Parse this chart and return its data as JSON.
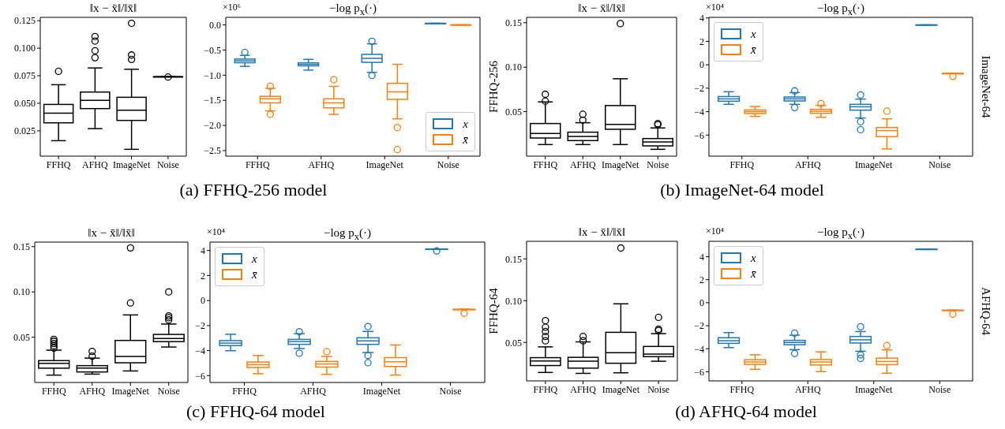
{
  "chart_data": [
    {
      "type": "box",
      "title": "‖x − x̄‖/‖x̄‖",
      "categories": [
        "FFHQ",
        "AFHQ",
        "ImageNet",
        "Noise"
      ],
      "ylim": [
        0.002,
        0.128
      ],
      "yticks": [
        {
          "value": 0.025,
          "label": "0.025"
        },
        {
          "value": 0.05,
          "label": "0.050"
        },
        {
          "value": 0.075,
          "label": "0.075"
        },
        {
          "value": 0.1,
          "label": "0.100"
        },
        {
          "value": 0.125,
          "label": "0.125"
        }
      ],
      "annotations": [
        "(a) FFHQ-256 model"
      ],
      "series": [
        {
          "color": "#000000",
          "boxes": [
            {
              "low": 0.0154,
              "q1": 0.0317,
              "median": 0.0406,
              "q3": 0.0485,
              "high": 0.0665,
              "outliers": [
                0.079
              ]
            },
            {
              "low": 0.0264,
              "q1": 0.0447,
              "median": 0.0523,
              "q3": 0.0598,
              "high": 0.0818,
              "outliers": [
                0.1106,
                0.1065,
                0.0977,
                0.0914
              ]
            },
            {
              "low": 0.0075,
              "q1": 0.0339,
              "median": 0.0432,
              "q3": 0.055,
              "high": 0.0806,
              "outliers": [
                0.1226,
                0.0938,
                0.0898
              ]
            },
            {
              "low": 0.0738,
              "q1": 0.0738,
              "median": 0.0738,
              "q3": 0.0738,
              "high": 0.0738,
              "outliers": [
                0.0738
              ]
            }
          ]
        }
      ]
    },
    {
      "type": "box",
      "title": "−log p$_{x}$(·)",
      "categories": [
        "FFHQ",
        "AFHQ",
        "ImageNet",
        "Noise"
      ],
      "ylim": [
        -2.61,
        0.15
      ],
      "yticks": [
        {
          "value": -2.5,
          "label": "−2.5"
        },
        {
          "value": -2,
          "label": "−2.0"
        },
        {
          "value": -1.5,
          "label": "−1.5"
        },
        {
          "value": -1,
          "label": "−1.0"
        },
        {
          "value": -0.5,
          "label": "−0.5"
        },
        {
          "value": 0,
          "label": "0.0"
        }
      ],
      "annotations": [
        "×10⁶"
      ],
      "legend": "bottom right",
      "series": [
        {
          "name": "x",
          "color": "#1f77b4",
          "boxes": [
            {
              "low": -0.83,
              "q1": -0.758,
              "median": -0.72,
              "q3": -0.684,
              "high": -0.61,
              "outliers": [
                -0.547
              ]
            },
            {
              "low": -0.905,
              "q1": -0.82,
              "median": -0.79,
              "q3": -0.76,
              "high": -0.69
            },
            {
              "low": -0.95,
              "q1": -0.75,
              "median": -0.67,
              "q3": -0.59,
              "high": -0.38,
              "outliers": [
                -0.326,
                -1.005
              ]
            },
            {
              "low": 0.03,
              "q1": 0.03,
              "median": 0.03,
              "q3": 0.03,
              "high": 0.03
            }
          ]
        },
        {
          "name": "x̄",
          "color": "#ff7f0e",
          "boxes": [
            {
              "low": -1.72,
              "q1": -1.56,
              "median": -1.48,
              "q3": -1.43,
              "high": -1.27,
              "outliers": [
                -1.22,
                -1.78
              ]
            },
            {
              "low": -1.79,
              "q1": -1.66,
              "median": -1.56,
              "q3": -1.48,
              "high": -1.23,
              "outliers": [
                -1.09
              ]
            },
            {
              "low": -1.88,
              "q1": -1.49,
              "median": -1.34,
              "q3": -1.17,
              "high": -0.79,
              "outliers": [
                -2.04,
                -2.48
              ]
            },
            {
              "low": 0,
              "q1": 0,
              "median": 0,
              "q3": 0,
              "high": 0
            }
          ]
        }
      ]
    },
    {
      "type": "box",
      "title": "‖x − x̄‖/‖x̄‖",
      "ylabel": "FFHQ-256",
      "categories": [
        "FFHQ",
        "AFHQ",
        "ImageNet",
        "Noise"
      ],
      "ylim": [
        0,
        0.156
      ],
      "yticks": [
        0.05,
        {
          "value": 0.1,
          "label": "0.10"
        },
        0.15
      ],
      "annotations": [
        "(b) ImageNet-64 model"
      ],
      "series": [
        {
          "color": "#000000",
          "boxes": [
            {
              "low": 0.0122,
              "q1": 0.0196,
              "median": 0.0247,
              "q3": 0.036,
              "high": 0.0604,
              "outliers": [
                0.0696,
                0.0619
              ]
            },
            {
              "low": 0.0122,
              "q1": 0.0167,
              "median": 0.0214,
              "q3": 0.0262,
              "high": 0.0369,
              "outliers": [
                0.047,
                0.0405
              ]
            },
            {
              "low": 0.0122,
              "q1": 0.0295,
              "median": 0.0351,
              "q3": 0.0563,
              "high": 0.0866,
              "outliers": [
                0.149
              ]
            },
            {
              "low": 0.0068,
              "q1": 0.0107,
              "median": 0.0152,
              "q3": 0.019,
              "high": 0.031,
              "outliers": [
                0.0366,
                0.0354
              ]
            }
          ]
        }
      ]
    },
    {
      "type": "box",
      "title": "−log p$_{x}$(·)",
      "y2label": "ImageNet-64",
      "categories": [
        "FFHQ",
        "AFHQ",
        "ImageNet",
        "Noise"
      ],
      "ylim": [
        -7.8,
        4.05
      ],
      "yticks": [
        {
          "value": -6,
          "label": "−6"
        },
        {
          "value": -4,
          "label": "−4"
        },
        {
          "value": -2,
          "label": "−2"
        },
        0,
        2,
        4
      ],
      "annotations": [
        "×10⁴"
      ],
      "legend": "top left",
      "series": [
        {
          "name": "x",
          "color": "#1f77b4",
          "boxes": [
            {
              "low": -3.42,
              "q1": -3.15,
              "median": -2.95,
              "q3": -2.75,
              "high": -2.34
            },
            {
              "low": -3.42,
              "q1": -3.13,
              "median": -2.95,
              "q3": -2.79,
              "high": -2.41,
              "outliers": [
                -2.23,
                -3.65
              ]
            },
            {
              "low": -4.59,
              "q1": -3.92,
              "median": -3.63,
              "q3": -3.42,
              "high": -2.97,
              "outliers": [
                -2.57,
                -4.86,
                -5.54
              ]
            },
            {
              "low": 3.4,
              "q1": 3.4,
              "median": 3.4,
              "q3": 3.4,
              "high": 3.4
            }
          ]
        },
        {
          "name": "x̄",
          "color": "#ff7f0e",
          "boxes": [
            {
              "low": -4.46,
              "q1": -4.21,
              "median": -4.05,
              "q3": -3.9,
              "high": -3.6
            },
            {
              "low": -4.53,
              "q1": -4.19,
              "median": -4.01,
              "q3": -3.85,
              "high": -3.51,
              "outliers": [
                -3.31
              ]
            },
            {
              "low": -7.25,
              "q1": -6.19,
              "median": -5.68,
              "q3": -5.41,
              "high": -4.66,
              "outliers": [
                -3.96
              ]
            },
            {
              "low": -0.77,
              "q1": -0.77,
              "median": -0.77,
              "q3": -0.77,
              "high": -0.77,
              "outliers": [
                -0.99
              ]
            }
          ]
        }
      ]
    },
    {
      "type": "box",
      "title": "‖x − x̄‖/‖x̄‖",
      "categories": [
        "FFHQ",
        "AFHQ",
        "ImageNet",
        "Noise"
      ],
      "ylim": [
        0,
        0.155
      ],
      "yticks": [
        0.05,
        {
          "value": 0.1,
          "label": "0.10"
        },
        0.15
      ],
      "annotations": [
        "(c) FFHQ-64 model"
      ],
      "series": [
        {
          "color": "#000000",
          "boxes": [
            {
              "low": 0.0073,
              "q1": 0.015,
              "median": 0.0203,
              "q3": 0.0234,
              "high": 0.035,
              "outliers": [
                0.0476,
                0.0455,
                0.043,
                0.0405,
                0.038
              ]
            },
            {
              "low": 0.0084,
              "q1": 0.0108,
              "median": 0.015,
              "q3": 0.0178,
              "high": 0.0262,
              "outliers": [
                0.0343,
                0.029
              ]
            },
            {
              "low": 0.0119,
              "q1": 0.021,
              "median": 0.028,
              "q3": 0.0458,
              "high": 0.0741,
              "outliers": [
                0.1486,
                0.0878
              ]
            },
            {
              "low": 0.0385,
              "q1": 0.0445,
              "median": 0.048,
              "q3": 0.0525,
              "high": 0.064,
              "outliers": [
                0.1,
                0.0735,
                0.0715,
                0.069
              ]
            }
          ]
        }
      ]
    },
    {
      "type": "box",
      "title": "−log p$_{x}$(·)",
      "categories": [
        "FFHQ",
        "AFHQ",
        "ImageNet",
        "Noise"
      ],
      "ylim": [
        -6.55,
        4.67
      ],
      "yticks": [
        {
          "value": -6,
          "label": "−6"
        },
        {
          "value": -4,
          "label": "−4"
        },
        {
          "value": -2,
          "label": "−2"
        },
        0,
        2,
        4
      ],
      "annotations": [
        "×10⁴"
      ],
      "legend": "top left",
      "series": [
        {
          "name": "x",
          "color": "#1f77b4",
          "boxes": [
            {
              "low": -4.06,
              "q1": -3.65,
              "median": -3.45,
              "q3": -3.25,
              "high": -2.74
            },
            {
              "low": -3.88,
              "q1": -3.55,
              "median": -3.32,
              "q3": -3.15,
              "high": -2.69,
              "outliers": [
                -2.49,
                -4.21
              ]
            },
            {
              "low": -4.21,
              "q1": -3.55,
              "median": -3.27,
              "q3": -3.02,
              "high": -2.51,
              "outliers": [
                -2.08,
                -4.39,
                -4.97
              ]
            },
            {
              "low": 4.11,
              "q1": 4.11,
              "median": 4.11,
              "q3": 4.11,
              "high": 4.11,
              "outliers": [
                3.96
              ]
            }
          ]
        },
        {
          "name": "x̄",
          "color": "#ff7f0e",
          "boxes": [
            {
              "low": -5.91,
              "q1": -5.41,
              "median": -5.18,
              "q3": -4.97,
              "high": -4.44
            },
            {
              "low": -5.96,
              "q1": -5.38,
              "median": -5.13,
              "q3": -4.92,
              "high": -4.52,
              "outliers": [
                -4.09
              ]
            },
            {
              "low": -6.02,
              "q1": -5.33,
              "median": -4.95,
              "q3": -4.62,
              "high": -3.6
            },
            {
              "low": -0.74,
              "q1": -0.74,
              "median": -0.74,
              "q3": -0.74,
              "high": -0.74,
              "outliers": [
                -1.02
              ]
            }
          ]
        }
      ]
    },
    {
      "type": "box",
      "title": "‖x − x̄‖/‖x̄‖",
      "ylabel": "FFHQ-64",
      "categories": [
        "FFHQ",
        "AFHQ",
        "ImageNet",
        "Noise"
      ],
      "ylim": [
        0.004,
        0.171
      ],
      "yticks": [
        0.05,
        {
          "value": 0.1,
          "label": "0.10"
        },
        0.15
      ],
      "annotations": [
        "(d) AFHQ-64 model"
      ],
      "series": [
        {
          "color": "#000000",
          "boxes": [
            {
              "low": 0.0132,
              "q1": 0.0215,
              "median": 0.0271,
              "q3": 0.031,
              "high": 0.044,
              "outliers": [
                0.0761,
                0.0682,
                0.063,
                0.0571,
                0.052
              ]
            },
            {
              "low": 0.0121,
              "q1": 0.0184,
              "median": 0.0267,
              "q3": 0.0314,
              "high": 0.05,
              "outliers": [
                0.0571,
                0.052
              ]
            },
            {
              "low": 0.0128,
              "q1": 0.0243,
              "median": 0.037,
              "q3": 0.0615,
              "high": 0.0958,
              "outliers": [
                0.163
              ]
            },
            {
              "low": 0.0267,
              "q1": 0.0322,
              "median": 0.0354,
              "q3": 0.0445,
              "high": 0.0599,
              "outliers": [
                0.08,
                0.0658,
                0.0642
              ]
            }
          ]
        }
      ]
    },
    {
      "type": "box",
      "title": "−log p$_{x}$(·)",
      "y2label": "AFHQ-64",
      "categories": [
        "FFHQ",
        "AFHQ",
        "ImageNet",
        "Noise"
      ],
      "ylim": [
        -6.79,
        5.33
      ],
      "yticks": [
        {
          "value": -6,
          "label": "−6"
        },
        {
          "value": -4,
          "label": "−4"
        },
        {
          "value": -2,
          "label": "−2"
        },
        0,
        2,
        4
      ],
      "annotations": [
        "×10⁴"
      ],
      "legend": "top left",
      "series": [
        {
          "name": "x",
          "color": "#1f77b4",
          "boxes": [
            {
              "low": -3.95,
              "q1": -3.58,
              "median": -3.35,
              "q3": -3.09,
              "high": -2.64
            },
            {
              "low": -4.13,
              "q1": -3.7,
              "median": -3.5,
              "q3": -3.32,
              "high": -2.87,
              "outliers": [
                -2.64,
                -4.41
              ]
            },
            {
              "low": -4.27,
              "q1": -3.55,
              "median": -3.27,
              "q3": -2.98,
              "high": -2.55,
              "outliers": [
                -2.09,
                -4.53,
                -4.84
              ]
            },
            {
              "low": 4.64,
              "q1": 4.64,
              "median": 4.64,
              "q3": 4.64,
              "high": 4.64
            }
          ]
        },
        {
          "name": "x̄",
          "color": "#ff7f0e",
          "boxes": [
            {
              "low": -5.85,
              "q1": -5.42,
              "median": -5.21,
              "q3": -5.01,
              "high": -4.58
            },
            {
              "low": -6.05,
              "q1": -5.47,
              "median": -5.21,
              "q3": -4.99,
              "high": -4.33
            },
            {
              "low": -6.19,
              "q1": -5.44,
              "median": -5.16,
              "q3": -4.87,
              "high": -4.15,
              "outliers": [
                -3.72
              ]
            },
            {
              "low": -0.69,
              "q1": -0.69,
              "median": -0.69,
              "q3": -0.69,
              "high": -0.69,
              "outliers": [
                -1.0
              ]
            }
          ]
        }
      ]
    }
  ]
}
